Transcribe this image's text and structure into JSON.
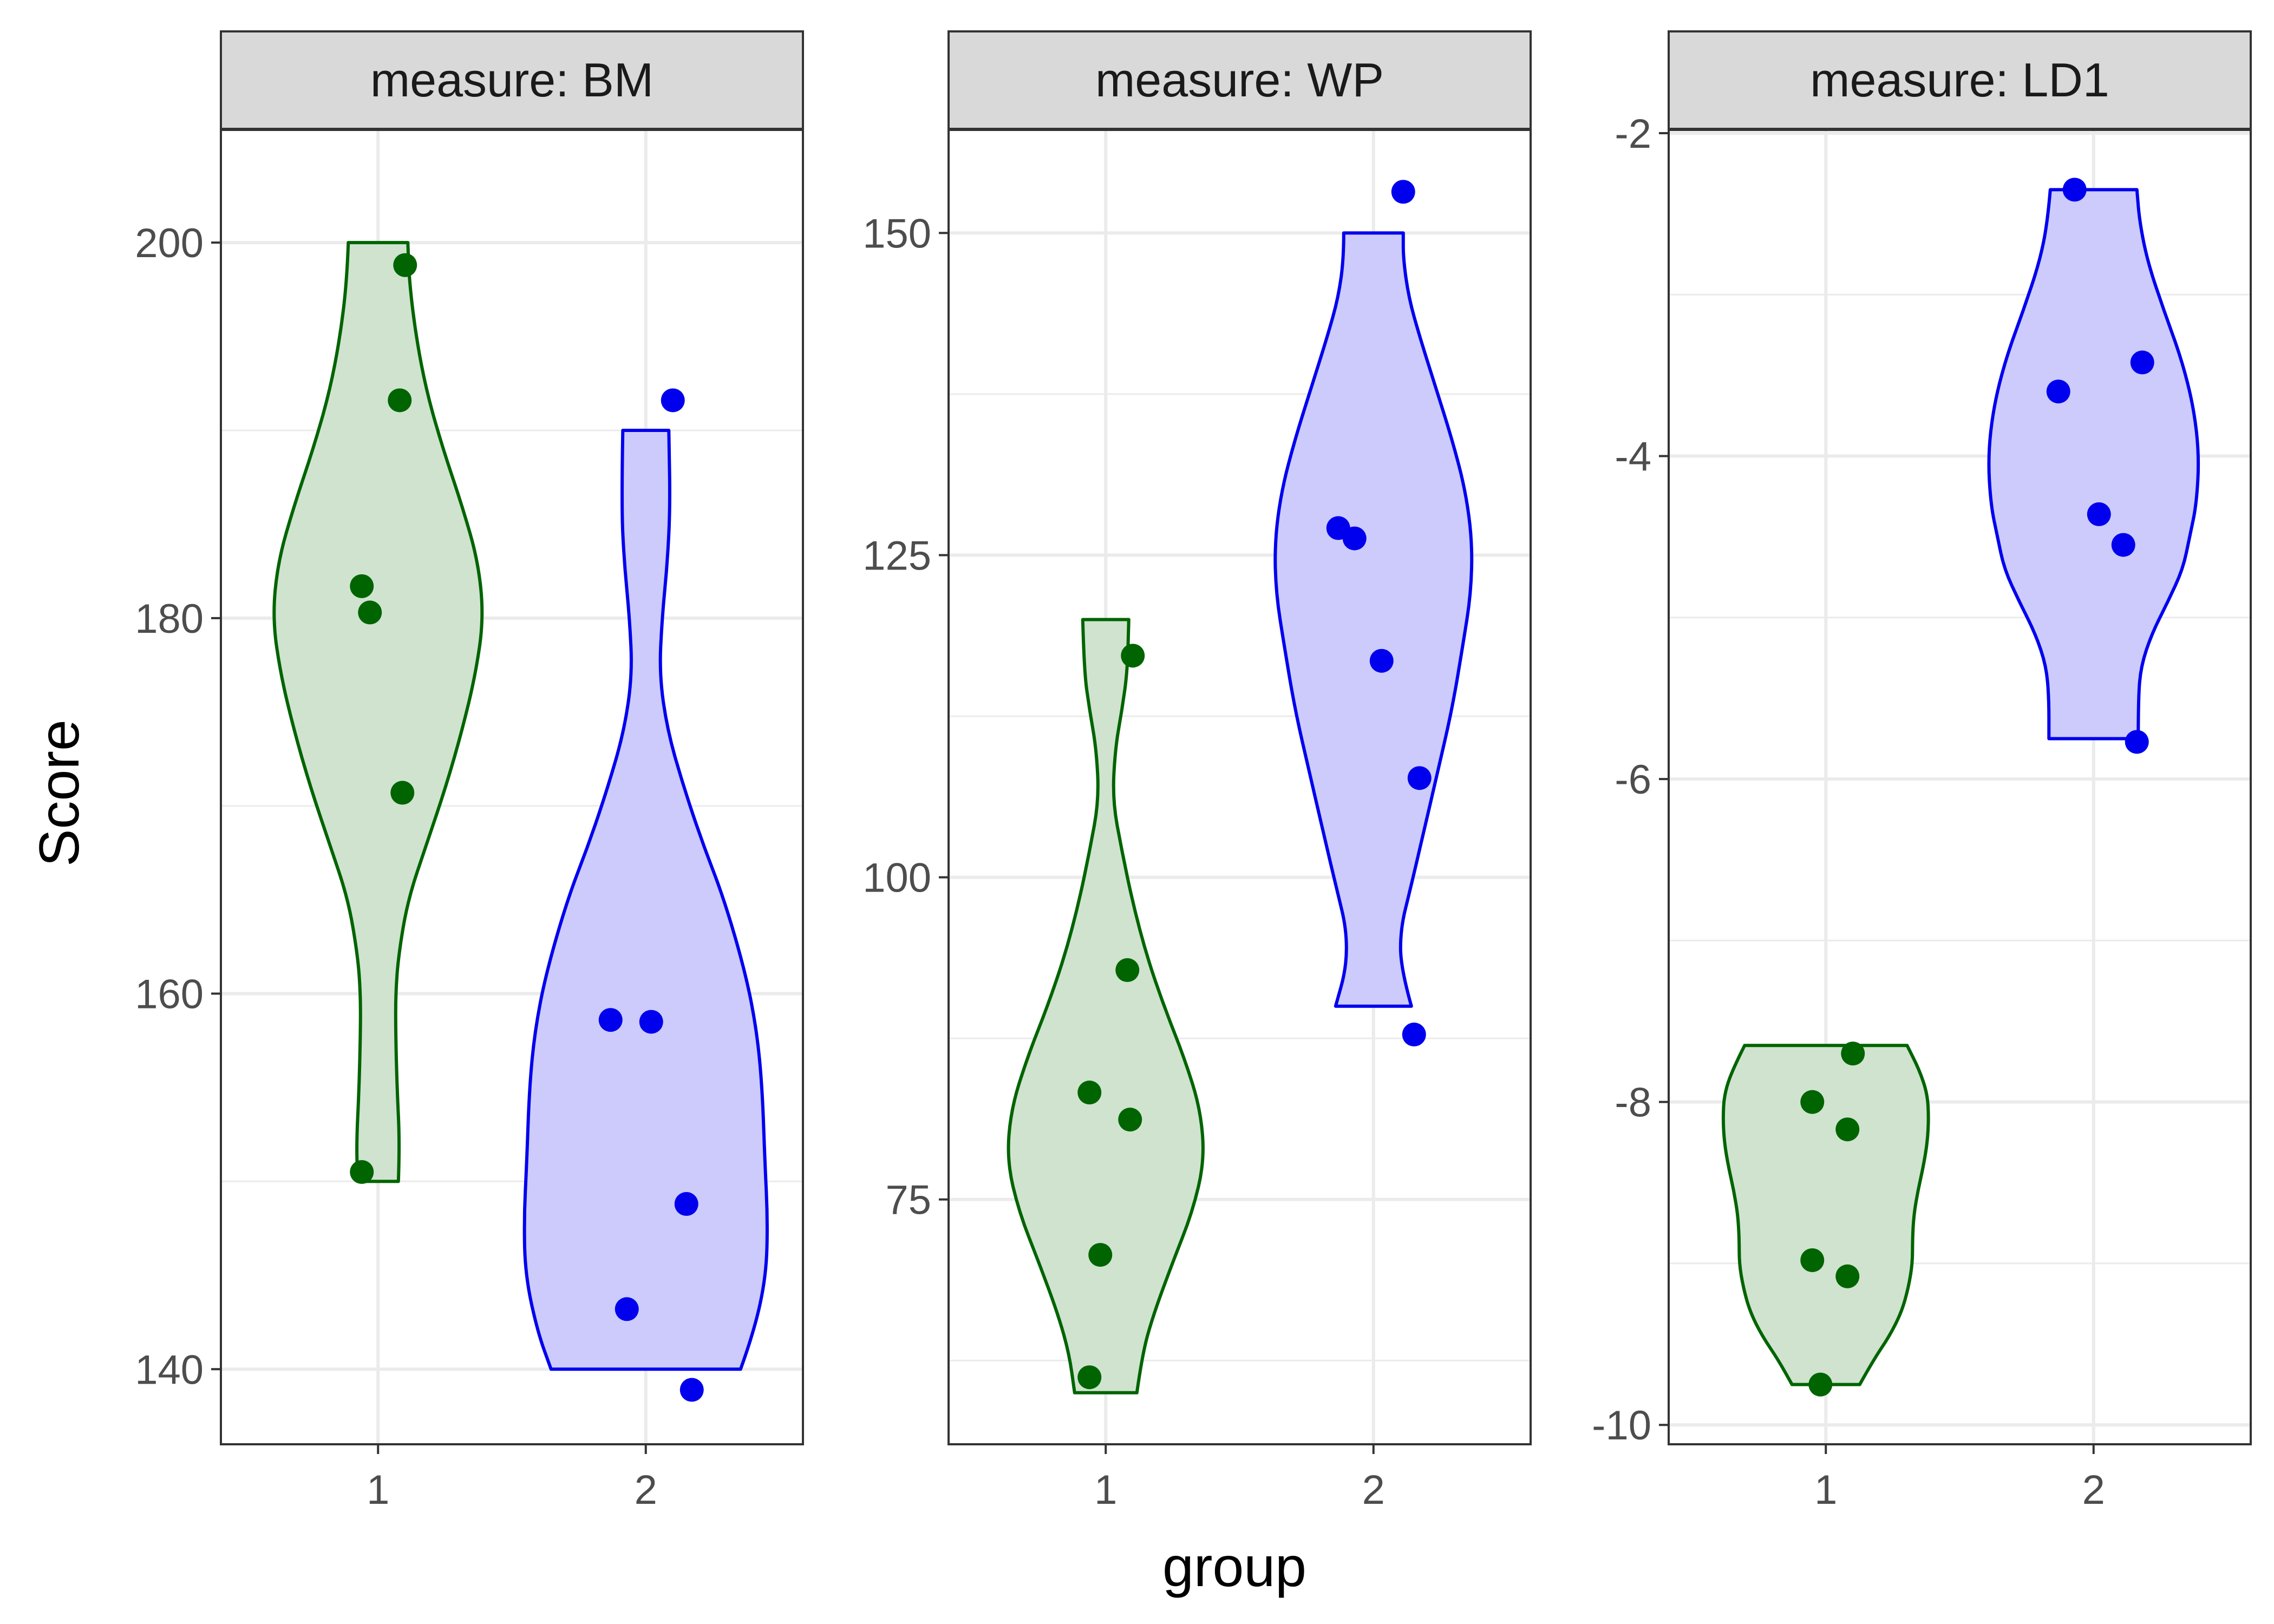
{
  "chart_data": {
    "type": "violin",
    "xlabel": "group",
    "ylabel": "Score",
    "facet_variable": "measure",
    "groups": [
      "1",
      "2"
    ],
    "colors": {
      "group1": {
        "line": "#006400",
        "fill": "#cfe3cf",
        "point": "#006400"
      },
      "group2": {
        "line": "#0000ee",
        "fill": "#cccbfc",
        "point": "#0000ee"
      }
    },
    "panels": [
      {
        "label": "measure: BM",
        "ylim": [
          136,
          206
        ],
        "yticks": [
          140,
          160,
          180,
          200
        ],
        "ytick_labels": [
          "140",
          "160",
          "180",
          "200"
        ],
        "violins": [
          {
            "group": "1",
            "min": 150,
            "max": 200,
            "profile": [
              [
                150,
                0.15
              ],
              [
                152,
                0.16
              ],
              [
                155,
                0.14
              ],
              [
                158,
                0.13
              ],
              [
                160,
                0.13
              ],
              [
                162,
                0.15
              ],
              [
                165,
                0.22
              ],
              [
                168,
                0.36
              ],
              [
                171,
                0.5
              ],
              [
                174,
                0.62
              ],
              [
                177,
                0.72
              ],
              [
                180,
                0.78
              ],
              [
                183,
                0.74
              ],
              [
                186,
                0.62
              ],
              [
                189,
                0.48
              ],
              [
                192,
                0.36
              ],
              [
                195,
                0.28
              ],
              [
                198,
                0.23
              ],
              [
                200,
                0.22
              ]
            ]
          },
          {
            "group": "2",
            "min": 140,
            "max": 190,
            "profile": [
              [
                140,
                0.7
              ],
              [
                142,
                0.8
              ],
              [
                145,
                0.89
              ],
              [
                148,
                0.9
              ],
              [
                151,
                0.88
              ],
              [
                155,
                0.86
              ],
              [
                158,
                0.82
              ],
              [
                161,
                0.74
              ],
              [
                165,
                0.58
              ],
              [
                168,
                0.42
              ],
              [
                171,
                0.28
              ],
              [
                174,
                0.16
              ],
              [
                177,
                0.1
              ],
              [
                180,
                0.12
              ],
              [
                183,
                0.16
              ],
              [
                186,
                0.18
              ],
              [
                190,
                0.17
              ]
            ]
          }
        ],
        "points": [
          {
            "group": "1",
            "value": 198.8,
            "jitter": 0.1
          },
          {
            "group": "1",
            "value": 191.6,
            "jitter": 0.08
          },
          {
            "group": "1",
            "value": 181.7,
            "jitter": -0.06
          },
          {
            "group": "1",
            "value": 180.3,
            "jitter": -0.03
          },
          {
            "group": "1",
            "value": 170.7,
            "jitter": 0.09
          },
          {
            "group": "1",
            "value": 150.5,
            "jitter": -0.06
          },
          {
            "group": "2",
            "value": 191.6,
            "jitter": 0.1
          },
          {
            "group": "2",
            "value": 158.6,
            "jitter": -0.13
          },
          {
            "group": "2",
            "value": 158.5,
            "jitter": 0.02
          },
          {
            "group": "2",
            "value": 148.8,
            "jitter": 0.15
          },
          {
            "group": "2",
            "value": 143.2,
            "jitter": -0.07
          },
          {
            "group": "2",
            "value": 138.9,
            "jitter": 0.17
          }
        ]
      },
      {
        "label": "measure: WP",
        "ylim": [
          56,
          158
        ],
        "yticks": [
          75,
          100,
          125,
          150
        ],
        "ytick_labels": [
          "75",
          "100",
          "125",
          "150"
        ],
        "violins": [
          {
            "group": "1",
            "min": 60,
            "max": 120,
            "profile": [
              [
                60,
                0.23
              ],
              [
                63,
                0.27
              ],
              [
                66,
                0.35
              ],
              [
                70,
                0.49
              ],
              [
                74,
                0.64
              ],
              [
                78,
                0.73
              ],
              [
                82,
                0.7
              ],
              [
                86,
                0.58
              ],
              [
                90,
                0.43
              ],
              [
                94,
                0.3
              ],
              [
                98,
                0.2
              ],
              [
                102,
                0.12
              ],
              [
                106,
                0.05
              ],
              [
                110,
                0.07
              ],
              [
                113,
                0.12
              ],
              [
                116,
                0.16
              ],
              [
                120,
                0.17
              ]
            ]
          },
          {
            "group": "2",
            "min": 90,
            "max": 150,
            "profile": [
              [
                90,
                0.28
              ],
              [
                93,
                0.2
              ],
              [
                96,
                0.2
              ],
              [
                99,
                0.27
              ],
              [
                103,
                0.36
              ],
              [
                108,
                0.47
              ],
              [
                113,
                0.58
              ],
              [
                118,
                0.66
              ],
              [
                122,
                0.72
              ],
              [
                126,
                0.73
              ],
              [
                130,
                0.68
              ],
              [
                134,
                0.58
              ],
              [
                138,
                0.46
              ],
              [
                142,
                0.34
              ],
              [
                145,
                0.26
              ],
              [
                148,
                0.22
              ],
              [
                150,
                0.22
              ]
            ]
          }
        ],
        "points": [
          {
            "group": "1",
            "value": 117.2,
            "jitter": 0.1
          },
          {
            "group": "1",
            "value": 92.8,
            "jitter": 0.08
          },
          {
            "group": "1",
            "value": 83.3,
            "jitter": -0.06
          },
          {
            "group": "1",
            "value": 81.2,
            "jitter": 0.09
          },
          {
            "group": "1",
            "value": 70.7,
            "jitter": -0.02
          },
          {
            "group": "1",
            "value": 61.2,
            "jitter": -0.06
          },
          {
            "group": "2",
            "value": 153.2,
            "jitter": 0.11
          },
          {
            "group": "2",
            "value": 127.1,
            "jitter": -0.13
          },
          {
            "group": "2",
            "value": 126.3,
            "jitter": -0.07
          },
          {
            "group": "2",
            "value": 116.8,
            "jitter": 0.03
          },
          {
            "group": "2",
            "value": 107.7,
            "jitter": 0.17
          },
          {
            "group": "2",
            "value": 87.8,
            "jitter": 0.15
          }
        ]
      },
      {
        "label": "measure: LD1",
        "ylim": [
          -10.12,
          -1.98
        ],
        "yticks": [
          -10,
          -8,
          -6,
          -4,
          -2
        ],
        "ytick_labels": [
          "-10",
          "-8",
          "-6",
          "-4",
          "-2"
        ],
        "violins": [
          {
            "group": "1",
            "min": -9.75,
            "max": -7.65,
            "profile": [
              [
                -9.75,
                0.25
              ],
              [
                -9.6,
                0.35
              ],
              [
                -9.45,
                0.47
              ],
              [
                -9.3,
                0.56
              ],
              [
                -9.15,
                0.61
              ],
              [
                -9.0,
                0.64
              ],
              [
                -8.85,
                0.64
              ],
              [
                -8.7,
                0.65
              ],
              [
                -8.55,
                0.68
              ],
              [
                -8.4,
                0.72
              ],
              [
                -8.25,
                0.75
              ],
              [
                -8.1,
                0.76
              ],
              [
                -7.95,
                0.75
              ],
              [
                -7.8,
                0.69
              ],
              [
                -7.65,
                0.6
              ]
            ]
          },
          {
            "group": "2",
            "min": -5.75,
            "max": -2.35,
            "profile": [
              [
                -5.75,
                0.33
              ],
              [
                -5.5,
                0.33
              ],
              [
                -5.3,
                0.35
              ],
              [
                -5.1,
                0.43
              ],
              [
                -4.9,
                0.55
              ],
              [
                -4.7,
                0.66
              ],
              [
                -4.5,
                0.71
              ],
              [
                -4.3,
                0.76
              ],
              [
                -4.0,
                0.78
              ],
              [
                -3.7,
                0.74
              ],
              [
                -3.4,
                0.65
              ],
              [
                -3.1,
                0.52
              ],
              [
                -2.8,
                0.4
              ],
              [
                -2.55,
                0.34
              ],
              [
                -2.35,
                0.32
              ]
            ]
          }
        ],
        "points": [
          {
            "group": "1",
            "value": -7.7,
            "jitter": 0.1
          },
          {
            "group": "1",
            "value": -8.0,
            "jitter": -0.05
          },
          {
            "group": "1",
            "value": -8.17,
            "jitter": 0.08
          },
          {
            "group": "1",
            "value": -8.98,
            "jitter": -0.05
          },
          {
            "group": "1",
            "value": -9.08,
            "jitter": 0.08
          },
          {
            "group": "1",
            "value": -9.75,
            "jitter": -0.02
          },
          {
            "group": "2",
            "value": -2.35,
            "jitter": -0.07
          },
          {
            "group": "2",
            "value": -3.42,
            "jitter": 0.18
          },
          {
            "group": "2",
            "value": -3.6,
            "jitter": -0.13
          },
          {
            "group": "2",
            "value": -4.36,
            "jitter": 0.02
          },
          {
            "group": "2",
            "value": -4.55,
            "jitter": 0.11
          },
          {
            "group": "2",
            "value": -5.77,
            "jitter": 0.16
          }
        ]
      }
    ]
  }
}
